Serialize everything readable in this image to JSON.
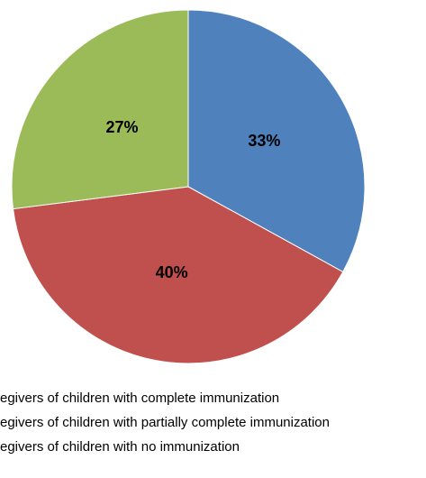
{
  "chart_data": {
    "type": "pie",
    "categories": [
      "egivers of children with complete immunization",
      "egivers of children with partially complete immunization",
      "egivers of children with no immunization"
    ],
    "values": [
      33,
      40,
      27
    ],
    "value_labels": [
      "33%",
      "40%",
      "27%"
    ],
    "colors": [
      "#4f81bd",
      "#c0504d",
      "#9bbb59"
    ]
  }
}
